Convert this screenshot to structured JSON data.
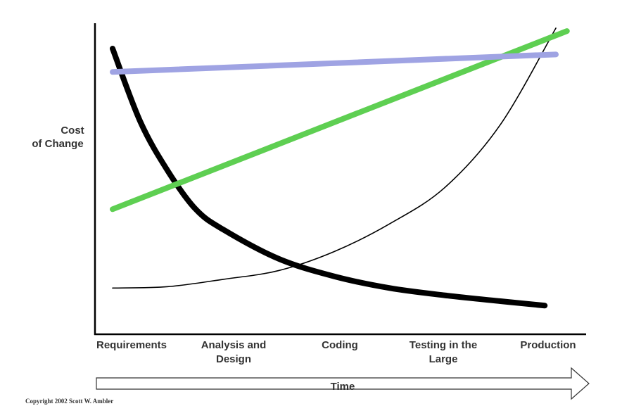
{
  "chart_data": {
    "type": "line",
    "ylabel_lines": [
      "Cost",
      "of Change"
    ],
    "categories": [
      "Requirements",
      "Analysis and Design",
      "Coding",
      "Testing in the Large",
      "Production"
    ],
    "category_label_lines": [
      [
        "Requirements"
      ],
      [
        "Analysis and",
        "Design"
      ],
      [
        "Coding"
      ],
      [
        "Testing in the",
        "Large"
      ],
      [
        "Production"
      ]
    ],
    "time_label": "Time",
    "xlim": [
      0,
      4
    ],
    "ylim": [
      0,
      100
    ],
    "grid": false,
    "legend": "none",
    "series": [
      {
        "color": "#000000",
        "width": "thin",
        "points": [
          [
            0,
            11
          ],
          [
            0.5,
            11.5
          ],
          [
            1.0,
            14
          ],
          [
            1.5,
            17
          ],
          [
            2.0,
            23.5
          ],
          [
            2.5,
            33
          ],
          [
            3.0,
            45.5
          ],
          [
            3.5,
            67
          ],
          [
            4.0,
            100
          ]
        ]
      },
      {
        "color": "#000000",
        "width": "thick",
        "points": [
          [
            0,
            93
          ],
          [
            0.25,
            68
          ],
          [
            0.5,
            51
          ],
          [
            0.75,
            38
          ],
          [
            1.0,
            31
          ],
          [
            1.5,
            21
          ],
          [
            2.0,
            15
          ],
          [
            2.5,
            11
          ],
          [
            3.0,
            8.5
          ],
          [
            3.5,
            6.5
          ],
          [
            3.9,
            5
          ]
        ]
      },
      {
        "color": "#5ecf52",
        "width": "thick",
        "points": [
          [
            0,
            38
          ],
          [
            4.1,
            99
          ]
        ]
      },
      {
        "color": "#9fa3e3",
        "width": "thick",
        "points": [
          [
            0,
            85
          ],
          [
            4.0,
            91
          ]
        ]
      }
    ]
  },
  "copyright": "Copyright 2002 Scott W. Ambler"
}
